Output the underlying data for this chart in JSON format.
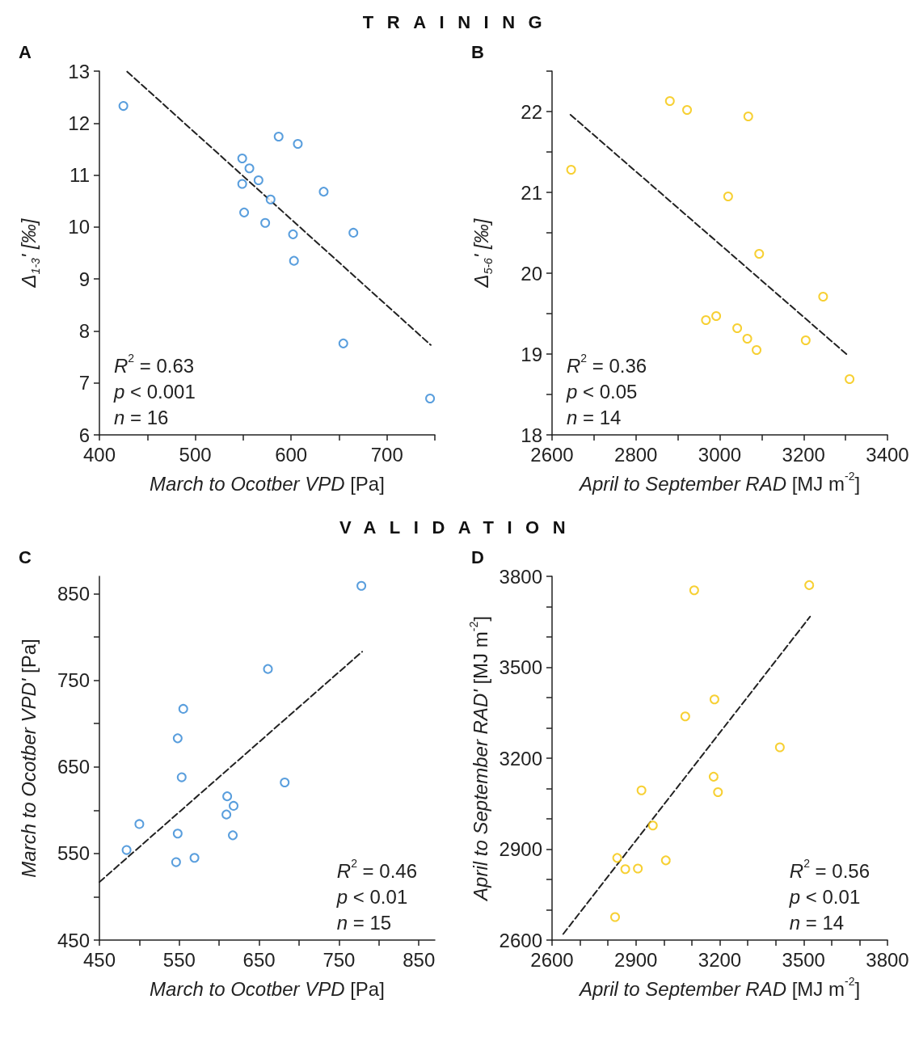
{
  "chart_data": [
    {
      "type": "scatter",
      "title": "TRAINING",
      "subtitle": "A",
      "xlabel": "March to Ocotber VPD [Pa]",
      "ylabel": "Δ$_{1-3}$' [‰]",
      "line_style": "dashed",
      "xlim": [
        400,
        750
      ],
      "xticks": [
        400,
        {
          "value": 450,
          "label": null
        },
        500,
        {
          "value": 550,
          "label": null
        },
        600,
        {
          "value": 650,
          "label": null
        },
        700,
        {
          "value": 750,
          "label": null
        }
      ],
      "ylim": [
        6,
        13
      ],
      "yticks": [
        6,
        7,
        8,
        9,
        10,
        11,
        12,
        13
      ],
      "annotations": [
        "R$^{2}$ = 0.63",
        "p < 0.001",
        "n = 16"
      ],
      "series": [
        {
          "color": "#2f86d4",
          "marker": "circle",
          "x": [
            425,
            587,
            607,
            549,
            556.5,
            566,
            549,
            634,
            578.6,
            551,
            573,
            602,
            665,
            603,
            654.5,
            745
          ],
          "values": [
            12.33,
            11.74,
            11.6,
            11.32,
            11.13,
            10.9,
            10.83,
            10.68,
            10.53,
            10.28,
            10.08,
            9.86,
            9.89,
            9.35,
            7.76,
            6.7
          ]
        },
        {
          "type": "line",
          "marker": "none",
          "color": "#222222",
          "x": [
            429,
            745.7
          ],
          "values": [
            12.99,
            7.73
          ]
        }
      ]
    },
    {
      "type": "scatter",
      "subtitle": "B",
      "xlabel": "April to September RAD [MJ m$^{-2}$]",
      "ylabel": "Δ$_{5-6}$' [‰]",
      "line_style": "dashed",
      "xlim": [
        2600,
        3400
      ],
      "xticks": [
        2600,
        {
          "value": 2700,
          "label": null
        },
        2800,
        {
          "value": 2900,
          "label": null
        },
        3000,
        {
          "value": 3100,
          "label": null
        },
        3200,
        {
          "value": 3300,
          "label": null
        },
        3400
      ],
      "ylim": [
        18,
        22.5
      ],
      "yticks": [
        18,
        {
          "value": 18.5,
          "label": null
        },
        19,
        {
          "value": 19.5,
          "label": null
        },
        20,
        {
          "value": 20.5,
          "label": null
        },
        21,
        {
          "value": 21.5,
          "label": null
        },
        22,
        {
          "value": 22.5,
          "label": null
        }
      ],
      "annotations": [
        "R$^{2}$ = 0.36",
        "p < 0.05",
        "n = 14"
      ],
      "series": [
        {
          "color": "#f5c400",
          "marker": "circle",
          "x": [
            2645.5,
            2881,
            2922,
            3068,
            3020,
            3094,
            3246.5,
            2967,
            2991.5,
            3041.6,
            3065.7,
            3087.8,
            3205,
            3309.6
          ],
          "values": [
            21.28,
            22.13,
            22.02,
            21.94,
            20.95,
            20.24,
            19.71,
            19.42,
            19.47,
            19.32,
            19.19,
            19.05,
            19.17,
            18.69
          ]
        },
        {
          "type": "line",
          "marker": "none",
          "color": "#222222",
          "x": [
            2644,
            3302
          ],
          "values": [
            21.96,
            19.0
          ]
        }
      ]
    },
    {
      "type": "scatter",
      "title": "VALIDATION",
      "subtitle": "C",
      "xlabel": "March to Ocotber VPD [Pa]",
      "ylabel": "March to Ocotber VPD' [Pa]",
      "line_style": "dashed",
      "xlim": [
        450,
        870
      ],
      "xticks": [
        450,
        {
          "value": 500,
          "label": null
        },
        550,
        {
          "value": 600,
          "label": null
        },
        650,
        {
          "value": 700,
          "label": null
        },
        750,
        {
          "value": 800,
          "label": null
        },
        850
      ],
      "ylim": [
        450,
        870
      ],
      "yticks": [
        450,
        {
          "value": 500,
          "label": null
        },
        550,
        {
          "value": 600,
          "label": null
        },
        650,
        {
          "value": 700,
          "label": null
        },
        750,
        {
          "value": 800,
          "label": null
        },
        850
      ],
      "annotations": [
        "R$^{2}$ = 0.46",
        "p < 0.01",
        "n = 15"
      ],
      "series": [
        {
          "color": "#2f86d4",
          "marker": "circle",
          "x": [
            778,
            661,
            555,
            548,
            553,
            682,
            610,
            618,
            609,
            500,
            548,
            617,
            484,
            569,
            546
          ],
          "values": [
            859,
            763,
            717,
            683,
            638,
            632,
            616,
            605,
            595,
            584,
            573,
            571,
            554,
            545,
            540
          ]
        },
        {
          "type": "line",
          "marker": "none",
          "color": "#222222",
          "x": [
            450,
            779
          ],
          "values": [
            517,
            783
          ]
        }
      ]
    },
    {
      "type": "scatter",
      "subtitle": "D",
      "xlabel": "April to September RAD [MJ m$^{-2}$]",
      "ylabel": "April to September RAD' [MJ m$^{-2}$]",
      "line_style": "dashed",
      "xlim": [
        2600,
        3800
      ],
      "xticks": [
        2600,
        {
          "value": 2700,
          "label": null
        },
        {
          "value": 2800,
          "label": null
        },
        2900,
        {
          "value": 3000,
          "label": null
        },
        {
          "value": 3100,
          "label": null
        },
        3200,
        {
          "value": 3300,
          "label": null
        },
        {
          "value": 3400,
          "label": null
        },
        3500,
        {
          "value": 3600,
          "label": null
        },
        {
          "value": 3700,
          "label": null
        },
        3800
      ],
      "ylim": [
        2600,
        3800
      ],
      "yticks": [
        2600,
        {
          "value": 2700,
          "label": null
        },
        {
          "value": 2800,
          "label": null
        },
        2900,
        {
          "value": 3000,
          "label": null
        },
        {
          "value": 3100,
          "label": null
        },
        3200,
        {
          "value": 3300,
          "label": null
        },
        {
          "value": 3400,
          "label": null
        },
        3500,
        {
          "value": 3600,
          "label": null
        },
        {
          "value": 3700,
          "label": null
        },
        3800
      ],
      "annotations": [
        "R$^{2}$ = 0.56",
        "p < 0.01",
        "n = 14"
      ],
      "series": [
        {
          "color": "#f5c400",
          "marker": "circle",
          "x": [
            3520,
            3108.5,
            3181,
            3076.6,
            3415,
            3178,
            3193.6,
            2920,
            2960.6,
            2833,
            3007,
            2862,
            2907,
            2825.5
          ],
          "values": [
            3771,
            3754,
            3394,
            3338,
            3236,
            3139,
            3088,
            3094,
            2978,
            2871,
            2863,
            2834,
            2836,
            2676
          ]
        },
        {
          "type": "line",
          "marker": "none",
          "color": "#222222",
          "x": [
            2640,
            3523
          ],
          "values": [
            2620,
            3667
          ]
        }
      ]
    }
  ]
}
